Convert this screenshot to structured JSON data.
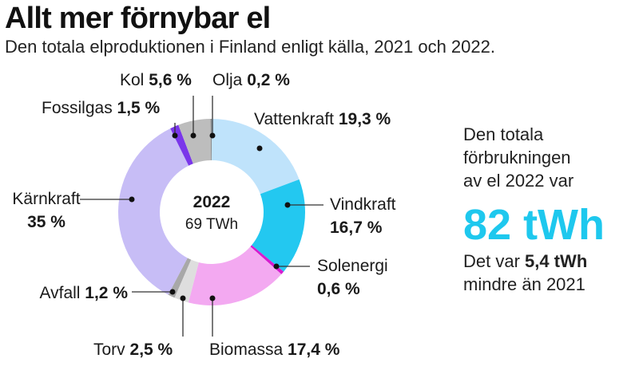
{
  "title": "Allt mer förnybar el",
  "subtitle": "Den totala elproduktionen i Finland enligt källa, 2021 och 2022.",
  "chart_data": {
    "type": "pie",
    "variant": "donut",
    "center": {
      "year": "2022",
      "total": "69 TWh"
    },
    "unit": "%",
    "slices": [
      {
        "name": "Vattenkraft",
        "value": 19.3,
        "value_label": "19,3 %",
        "color": "#bfe3fb"
      },
      {
        "name": "Vindkraft",
        "value": 16.7,
        "value_label": "16,7 %",
        "color": "#23c8f0"
      },
      {
        "name": "Solenergi",
        "value": 0.6,
        "value_label": "0,6 %",
        "color": "#d61ccf"
      },
      {
        "name": "Biomassa",
        "value": 17.4,
        "value_label": "17,4 %",
        "color": "#f3a9f1"
      },
      {
        "name": "Torv",
        "value": 2.5,
        "value_label": "2,5 %",
        "color": "#dedede"
      },
      {
        "name": "Avfall",
        "value": 1.2,
        "value_label": "1,2 %",
        "color": "#a8a8a8"
      },
      {
        "name": "Kärnkraft",
        "value": 35,
        "value_label": "35 %",
        "color": "#c7bdf6"
      },
      {
        "name": "Fossilgas",
        "value": 1.5,
        "value_label": "1,5 %",
        "color": "#7a36ea"
      },
      {
        "name": "Kol",
        "value": 5.6,
        "value_label": "5,6 %",
        "color": "#bdbdbd"
      },
      {
        "name": "Olja",
        "value": 0.2,
        "value_label": "0,2 %",
        "color": "#8c8c8c"
      }
    ]
  },
  "side_note": {
    "line1": "Den totala",
    "line2": "förbrukningen",
    "line3": "av el 2022 var",
    "big_value": "82 tWh",
    "line4_prefix": "Det var ",
    "line4_bold": "5,4 tWh",
    "line5": "mindre än 2021"
  }
}
